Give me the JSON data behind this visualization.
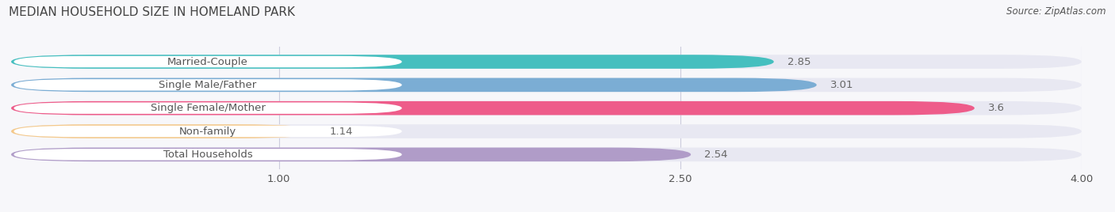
{
  "title": "MEDIAN HOUSEHOLD SIZE IN HOMELAND PARK",
  "source": "Source: ZipAtlas.com",
  "categories": [
    "Married-Couple",
    "Single Male/Father",
    "Single Female/Mother",
    "Non-family",
    "Total Households"
  ],
  "values": [
    2.85,
    3.01,
    3.6,
    1.14,
    2.54
  ],
  "bar_colors": [
    "#45BFBF",
    "#7BADD4",
    "#EE5C8A",
    "#F5C98A",
    "#B09CC8"
  ],
  "bar_bg_color": "#E8E8F2",
  "xlim": [
    0.0,
    4.0
  ],
  "xticks": [
    1.0,
    2.5,
    4.0
  ],
  "xticklabels": [
    "1.00",
    "2.50",
    "4.00"
  ],
  "label_fontsize": 9.5,
  "value_fontsize": 9.5,
  "title_fontsize": 11,
  "source_fontsize": 8.5,
  "bar_height": 0.6,
  "bg_color": "#F7F7FA",
  "text_color": "#555555",
  "title_color": "#444444",
  "label_pill_color": "#FFFFFF",
  "label_text_color": "#555555",
  "grid_color": "#CCCCDD",
  "value_label_color": "#666666"
}
